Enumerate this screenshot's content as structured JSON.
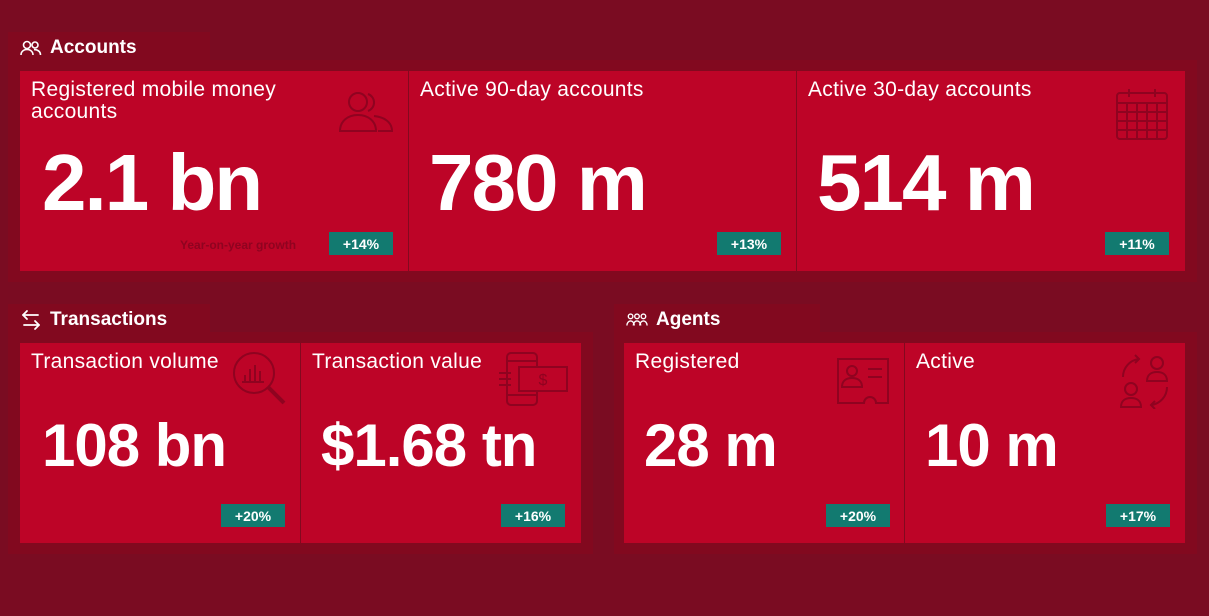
{
  "accounts": {
    "section_title": "Accounts",
    "icon": "people-icon",
    "cards": [
      {
        "title": "Registered mobile money accounts",
        "value": "2.1 bn",
        "growth": "+14%",
        "growth_label": "Year-on-year growth",
        "icon": "people-icon"
      },
      {
        "title": "Active 90-day accounts",
        "value": "780 m",
        "growth": "+13%"
      },
      {
        "title": "Active 30-day accounts",
        "value": "514 m",
        "growth": "+11%",
        "icon": "calendar-icon"
      }
    ]
  },
  "transactions": {
    "section_title": "Transactions",
    "icon": "swap-arrows-icon",
    "cards": [
      {
        "title": "Transaction volume",
        "value": "108 bn",
        "growth": "+20%",
        "icon": "magnifier-chart-icon"
      },
      {
        "title": "Transaction value",
        "value": "$1.68 tn",
        "growth": "+16%",
        "icon": "phone-cash-icon"
      }
    ]
  },
  "agents": {
    "section_title": "Agents",
    "icon": "group-icon",
    "cards": [
      {
        "title": "Registered",
        "value": "28 m",
        "growth": "+20%",
        "icon": "id-card-icon"
      },
      {
        "title": "Active",
        "value": "10 m",
        "growth": "+17%",
        "icon": "exchange-people-icon"
      }
    ]
  },
  "colors": {
    "background": "#7a0c22",
    "panel": "#82091f",
    "card": "#bd0427",
    "badge": "#127a70",
    "text": "#ffffff"
  }
}
